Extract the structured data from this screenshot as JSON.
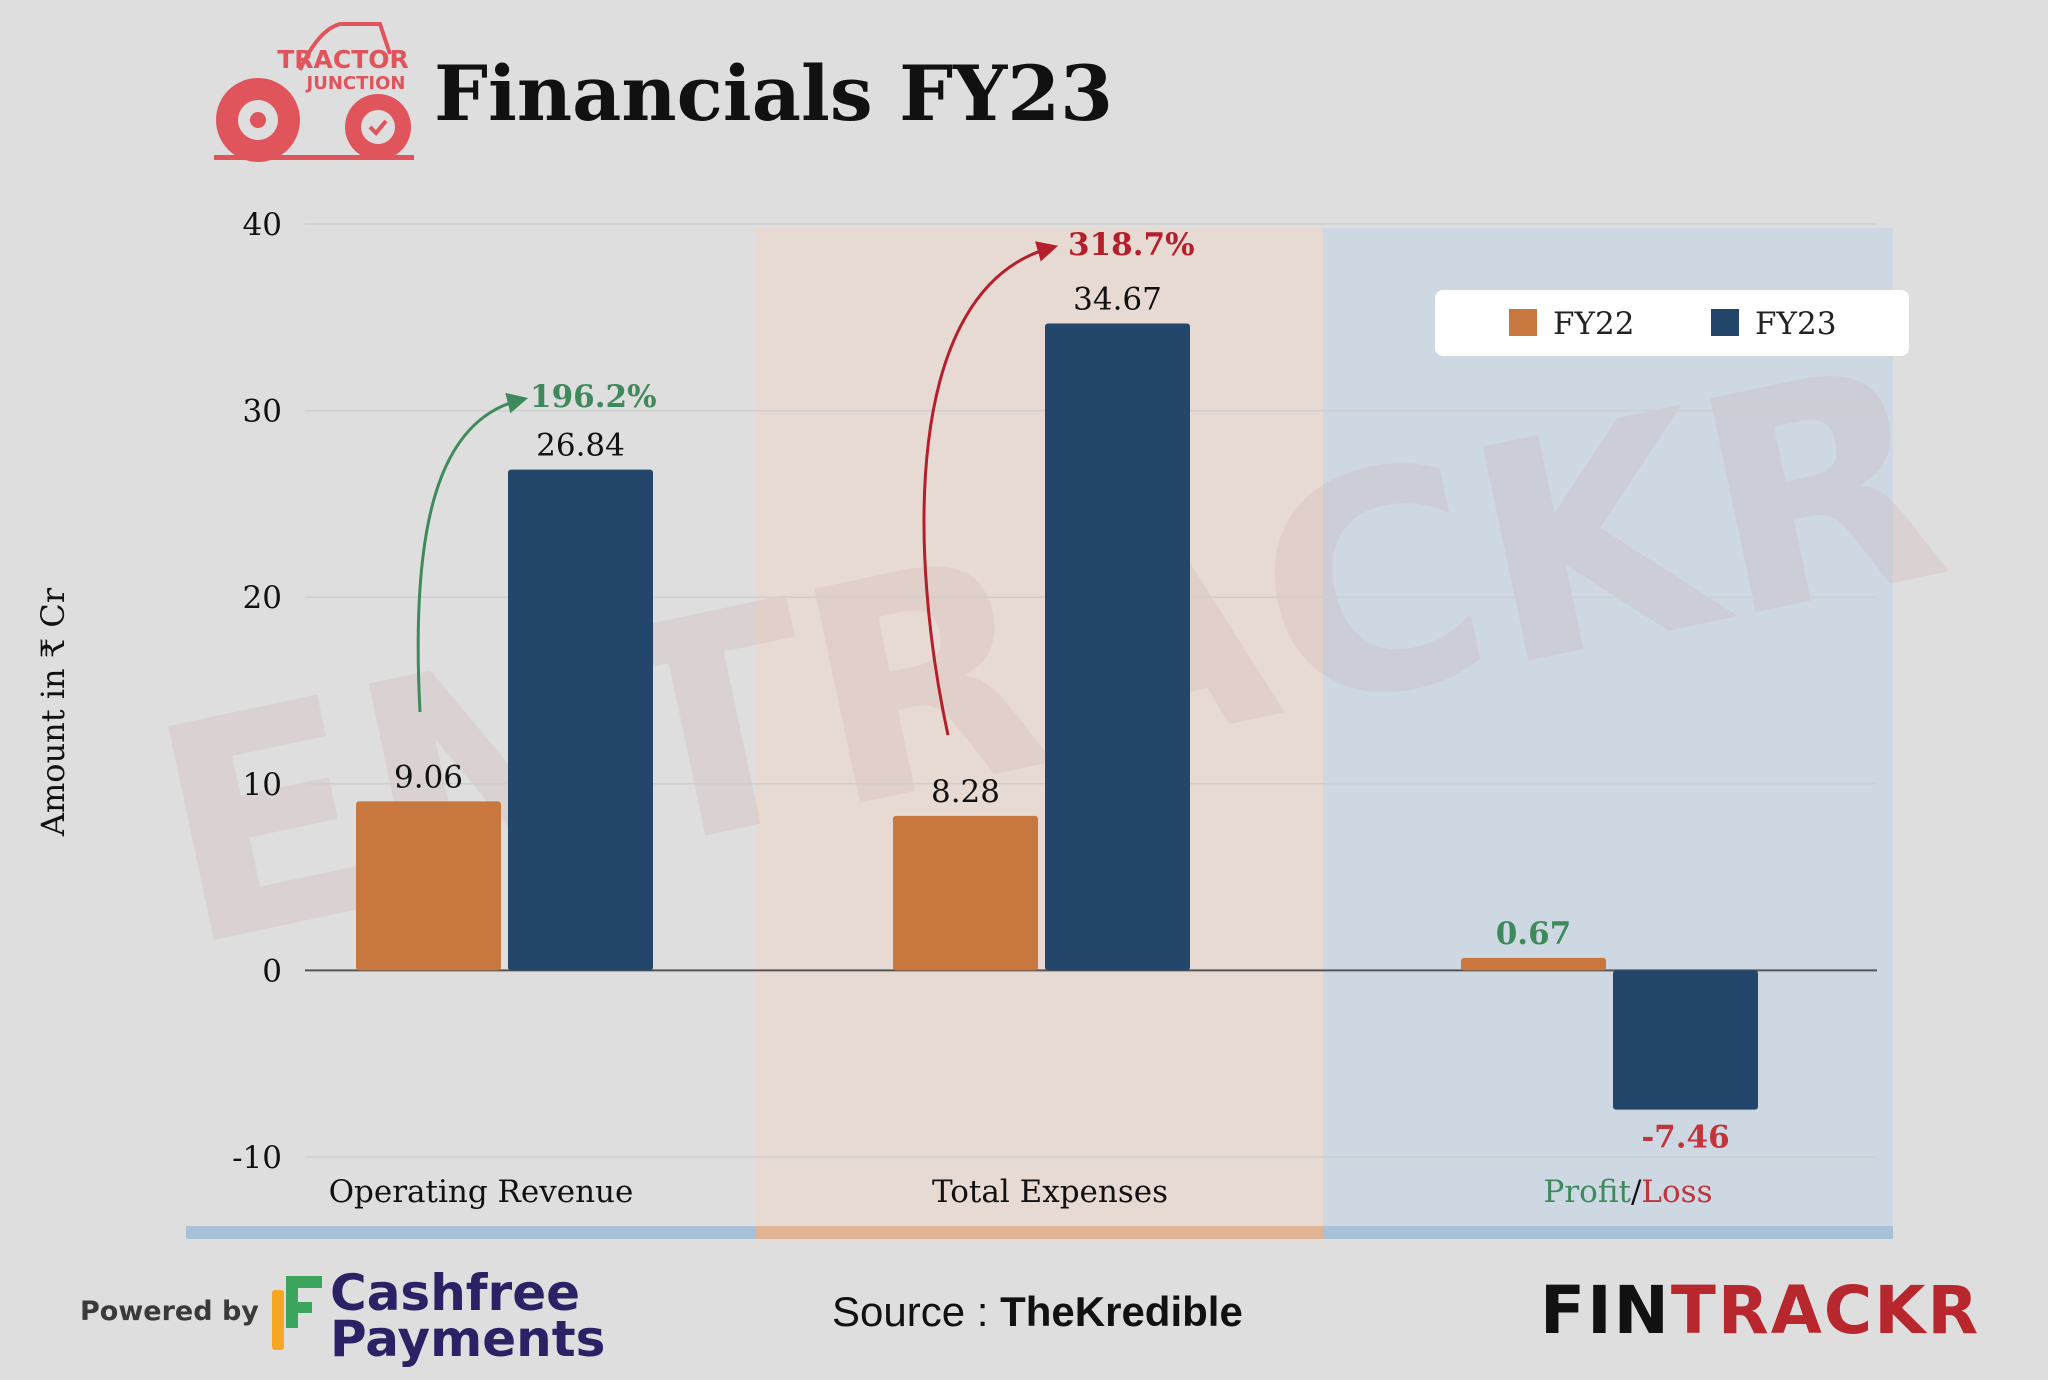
{
  "title": "Financials FY23",
  "logo_text": [
    "TRACTOR",
    "JUNCTION"
  ],
  "watermark": "ENTRACKR",
  "colors": {
    "fy22": "#c8773e",
    "fy23": "#24466b",
    "growth_green": "#3f8a5c",
    "growth_red": "#b51f2b",
    "loss_red": "#c0343b",
    "logo_red": "#e0545b"
  },
  "chart_data": {
    "type": "bar",
    "ylabel": "Amount in ₹ Cr",
    "ylim": [
      -10,
      40
    ],
    "yticks": [
      40,
      30,
      20,
      10,
      0,
      -10
    ],
    "grid": true,
    "legend_position": "top-right",
    "categories": [
      "Operating Revenue",
      "Total Expenses",
      "Profit/Loss"
    ],
    "category_label_parts": {
      "profit": "Profit",
      "slash": "/",
      "loss": "Loss"
    },
    "series": [
      {
        "name": "FY22",
        "values": [
          9.06,
          8.28,
          0.67
        ],
        "labels": [
          "9.06",
          "8.28",
          "0.67"
        ]
      },
      {
        "name": "FY23",
        "values": [
          26.84,
          34.67,
          -7.46
        ],
        "labels": [
          "26.84",
          "34.67",
          "-7.46"
        ]
      }
    ],
    "annotations": [
      {
        "category": "Operating Revenue",
        "text": "196.2%"
      },
      {
        "category": "Total Expenses",
        "text": "318.7%"
      }
    ]
  },
  "footer": {
    "powered_by": "Powered by",
    "sponsor_line1": "Cashfree",
    "sponsor_line2": "Payments",
    "source_label": "Source : ",
    "source_name": "TheKredible",
    "brand_part1": "FIN",
    "brand_part2": "TRACKR"
  }
}
